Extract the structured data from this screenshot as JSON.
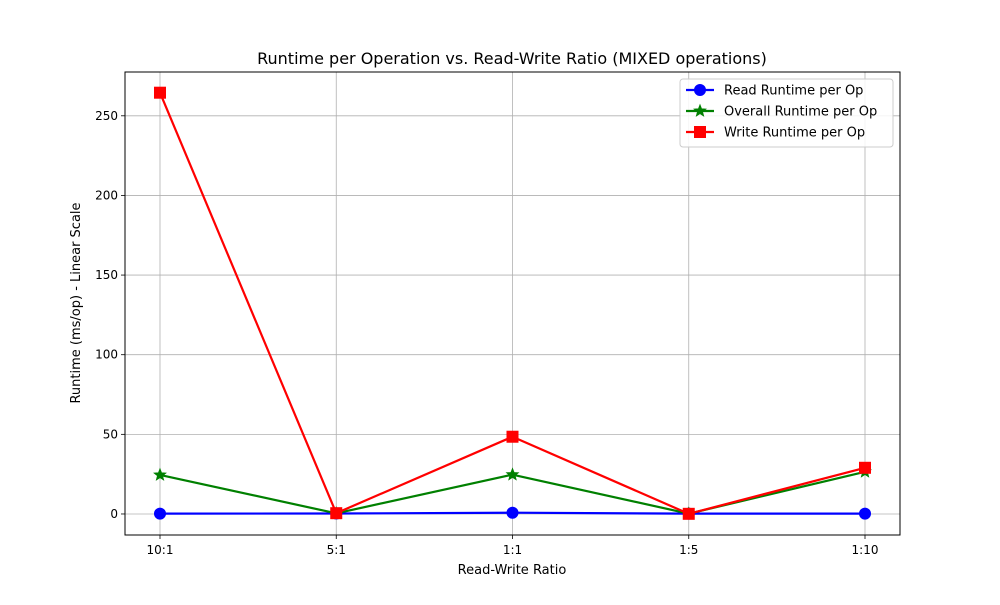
{
  "chart_data": {
    "type": "line",
    "title": "Runtime per Operation vs. Read-Write Ratio (MIXED operations)",
    "xlabel": "Read-Write Ratio",
    "ylabel": "Runtime (ms/op) - Linear Scale",
    "categories": [
      "10:1",
      "5:1",
      "1:1",
      "1:5",
      "1:10"
    ],
    "ylim": [
      -13.2,
      277.5
    ],
    "yticks": [
      0,
      50,
      100,
      150,
      200,
      250
    ],
    "grid": true,
    "legend_position": "top-right",
    "series": [
      {
        "name": "Read Runtime per Op",
        "color": "#0000ff",
        "marker": "circle",
        "values": [
          0.2,
          0.3,
          0.8,
          0.2,
          0.2
        ]
      },
      {
        "name": "Overall Runtime per Op",
        "color": "#008000",
        "marker": "star",
        "values": [
          24.5,
          0.4,
          24.7,
          0.2,
          26.5
        ]
      },
      {
        "name": "Write Runtime per Op",
        "color": "#ff0000",
        "marker": "square",
        "values": [
          264.5,
          0.5,
          48.5,
          0.1,
          29.0
        ]
      }
    ]
  }
}
